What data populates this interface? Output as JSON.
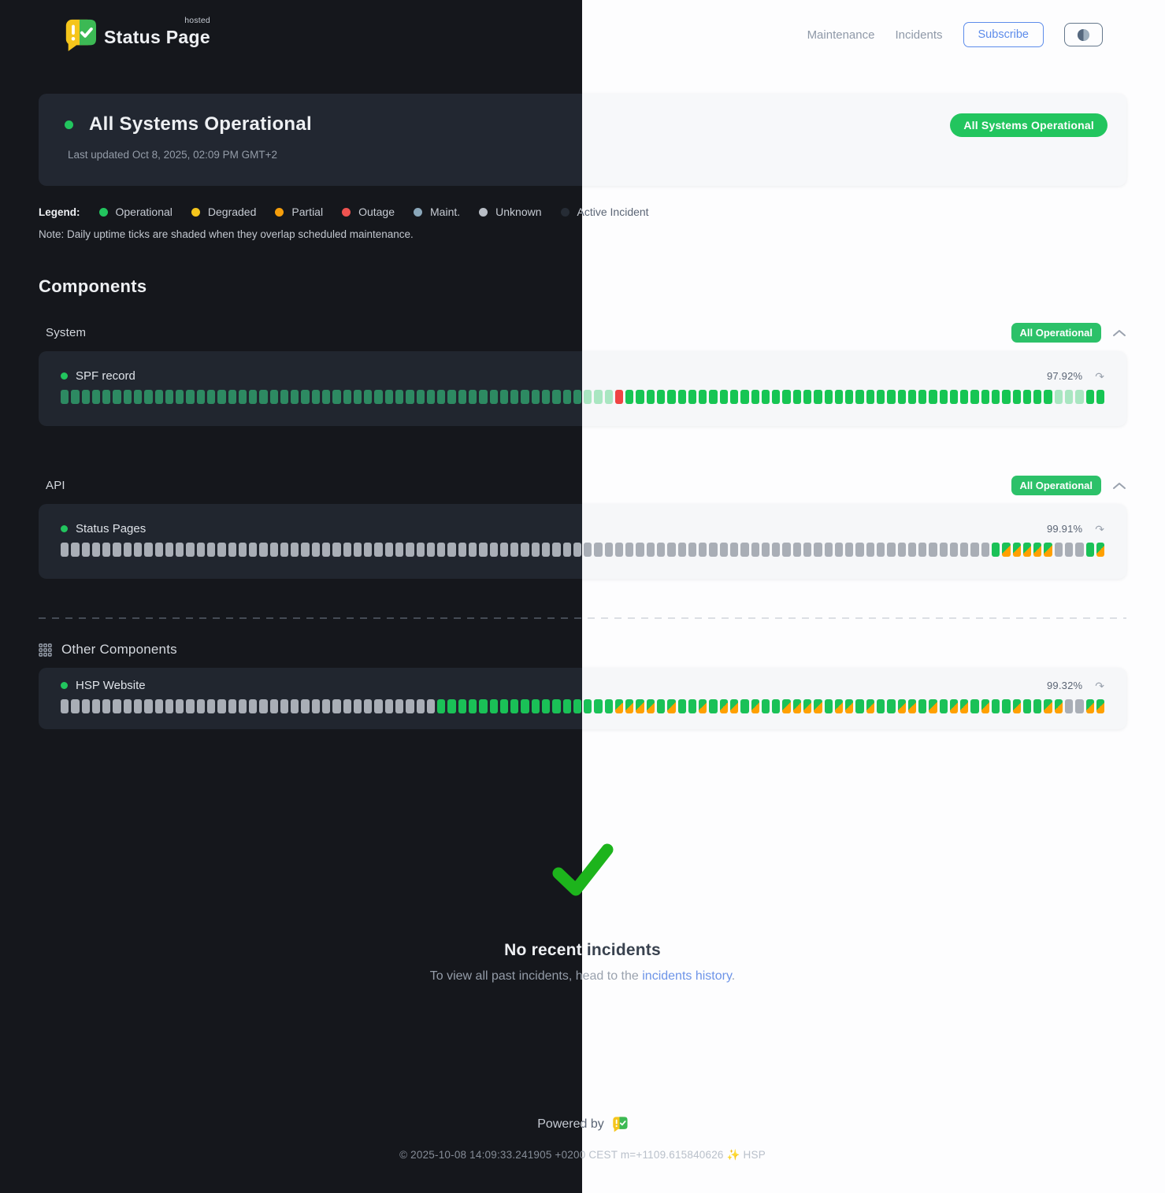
{
  "brand": {
    "name": "Status Page",
    "superscript": "hosted"
  },
  "nav": {
    "links": [
      {
        "label": "Maintenance"
      },
      {
        "label": "Incidents"
      }
    ],
    "subscribe_label": "Subscribe"
  },
  "hero": {
    "title": "All Systems Operational",
    "last_updated": "Last updated Oct 8, 2025, 02:09 PM GMT+2",
    "badge": "All Systems Operational",
    "status_color": "#22c55e"
  },
  "legend": {
    "label": "Legend:",
    "items": [
      {
        "label": "Operational",
        "color": "#22c55e"
      },
      {
        "label": "Degraded",
        "color": "#f4c51c"
      },
      {
        "label": "Partial",
        "color": "#f59e0b"
      },
      {
        "label": "Outage",
        "color": "#ef5350"
      },
      {
        "label": "Maint.",
        "color": "#8aa7ba"
      },
      {
        "label": "Unknown",
        "color": "#b9bec6"
      },
      {
        "label": "Active Incident",
        "color": "#262c35"
      }
    ]
  },
  "note": "Note: Daily uptime ticks are shaded when they overlap scheduled maintenance.",
  "components_heading": "Components",
  "tick_status_legend": {
    "op": "operational",
    "op2": "operational",
    "dim": "operational-low-uptime",
    "out": "outage",
    "maint": "operational-with-scheduled-maintenance",
    "unk": "unknown"
  },
  "groups": [
    {
      "label": "System",
      "badge": "All Operational",
      "items": [
        {
          "name": "SPF record",
          "uptime": "97.92%",
          "ticks": [
            {
              "s": "op",
              "n": 50
            },
            {
              "s": "dim",
              "n": 3
            },
            {
              "s": "out",
              "n": 1
            },
            {
              "s": "op",
              "n": 41
            },
            {
              "s": "dim",
              "n": 3
            },
            {
              "s": "op",
              "n": 2
            }
          ]
        }
      ]
    },
    {
      "label": "API",
      "badge": "All Operational",
      "items": [
        {
          "name": "Status Pages",
          "uptime": "99.91%",
          "ticks": [
            {
              "s": "unk",
              "n": 89
            },
            {
              "s": "op2",
              "n": 1
            },
            {
              "s": "maint",
              "n": 5
            },
            {
              "s": "unk",
              "n": 3
            },
            {
              "s": "op2",
              "n": 1
            },
            {
              "s": "maint",
              "n": 1
            }
          ]
        }
      ]
    }
  ],
  "other": {
    "label": "Other Components",
    "items": [
      {
        "name": "HSP Website",
        "uptime": "99.32%",
        "ticks": [
          {
            "s": "unk",
            "n": 36
          },
          {
            "s": "op2",
            "n": 17
          },
          {
            "s": "maint",
            "n": 4
          },
          {
            "s": "op2",
            "n": 1
          },
          {
            "s": "maint",
            "n": 1
          },
          {
            "s": "op2",
            "n": 2
          },
          {
            "s": "maint",
            "n": 1
          },
          {
            "s": "op2",
            "n": 1
          },
          {
            "s": "maint",
            "n": 2
          },
          {
            "s": "op2",
            "n": 1
          },
          {
            "s": "maint",
            "n": 1
          },
          {
            "s": "op2",
            "n": 2
          },
          {
            "s": "maint",
            "n": 4
          },
          {
            "s": "op2",
            "n": 1
          },
          {
            "s": "maint",
            "n": 2
          },
          {
            "s": "op2",
            "n": 1
          },
          {
            "s": "maint",
            "n": 1
          },
          {
            "s": "op2",
            "n": 2
          },
          {
            "s": "maint",
            "n": 2
          },
          {
            "s": "op2",
            "n": 1
          },
          {
            "s": "maint",
            "n": 1
          },
          {
            "s": "op2",
            "n": 1
          },
          {
            "s": "maint",
            "n": 2
          },
          {
            "s": "op2",
            "n": 1
          },
          {
            "s": "maint",
            "n": 1
          },
          {
            "s": "op2",
            "n": 2
          },
          {
            "s": "maint",
            "n": 1
          },
          {
            "s": "op2",
            "n": 2
          },
          {
            "s": "maint",
            "n": 2
          },
          {
            "s": "unk",
            "n": 2
          },
          {
            "s": "maint",
            "n": 2
          }
        ]
      }
    ]
  },
  "incidents": {
    "title": "No recent incidents",
    "subtext_prefix": "To view all past incidents, head to the ",
    "link_label": "incidents history",
    "subtext_suffix": ".",
    "check_color": "#1db41c"
  },
  "footer": {
    "powered_by": "Powered by",
    "copyright": "© 2025-10-08 14:09:33.241905 +0200 CEST m=+1109.615840626 ✨ HSP"
  }
}
